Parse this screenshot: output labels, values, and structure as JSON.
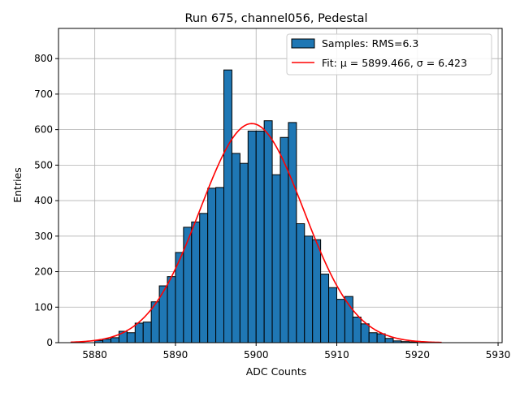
{
  "chart_data": {
    "type": "bar",
    "title": "Run 675, channel056, Pedestal",
    "xlabel": "ADC Counts",
    "ylabel": "Entries",
    "xlim": [
      5875.5,
      5930.5
    ],
    "ylim": [
      0,
      885
    ],
    "xticks": [
      5880,
      5890,
      5900,
      5910,
      5920,
      5930
    ],
    "yticks": [
      0,
      100,
      200,
      300,
      400,
      500,
      600,
      700,
      800
    ],
    "grid": true,
    "legend_position": "top-right",
    "bin_width": 1,
    "bin_edges_start": 5880,
    "values": [
      6,
      10,
      14,
      32,
      28,
      55,
      58,
      115,
      160,
      186,
      254,
      325,
      340,
      364,
      435,
      437,
      768,
      533,
      505,
      596,
      596,
      625,
      473,
      578,
      620,
      335,
      300,
      290,
      193,
      155,
      122,
      130,
      72,
      53,
      28,
      25,
      12,
      5,
      3,
      2
    ],
    "series": [
      {
        "name": "Samples: RMS=6.3",
        "kind": "histogram",
        "color": "#1f77b4",
        "edgecolor": "#000000"
      },
      {
        "name": "Fit: μ = 5899.466, σ = 6.423",
        "kind": "gaussian-fit",
        "color": "#ff0000",
        "mu": 5899.466,
        "sigma": 6.423,
        "amplitude": 617,
        "x_range": [
          5877,
          5923
        ]
      }
    ]
  }
}
